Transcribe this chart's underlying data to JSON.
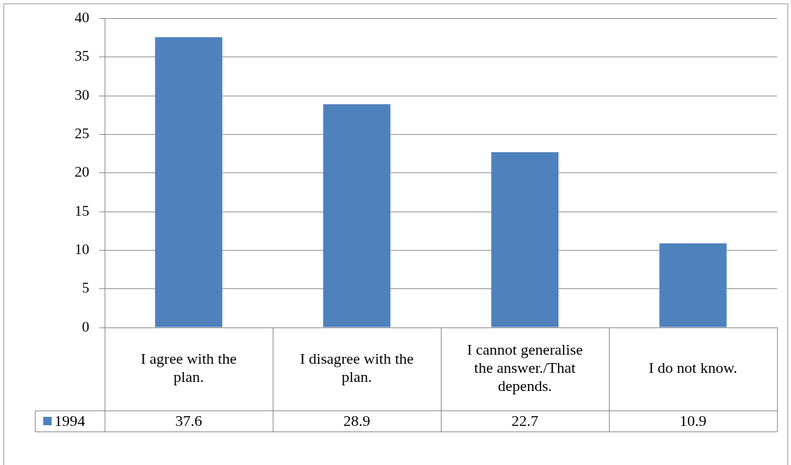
{
  "chart_data": {
    "type": "bar",
    "categories": [
      "I agree with the plan.",
      "I disagree with the plan.",
      "I cannot generalise the answer./That depends.",
      "I do not know."
    ],
    "series": [
      {
        "name": "1994",
        "color": "#4f81bd",
        "values": [
          37.6,
          28.9,
          22.7,
          10.9
        ]
      }
    ],
    "ylim": [
      0,
      40
    ],
    "yticks": [
      0,
      5,
      10,
      15,
      20,
      25,
      30,
      35,
      40
    ],
    "grid": "y",
    "legend": "bottom left",
    "data_labels": true
  }
}
